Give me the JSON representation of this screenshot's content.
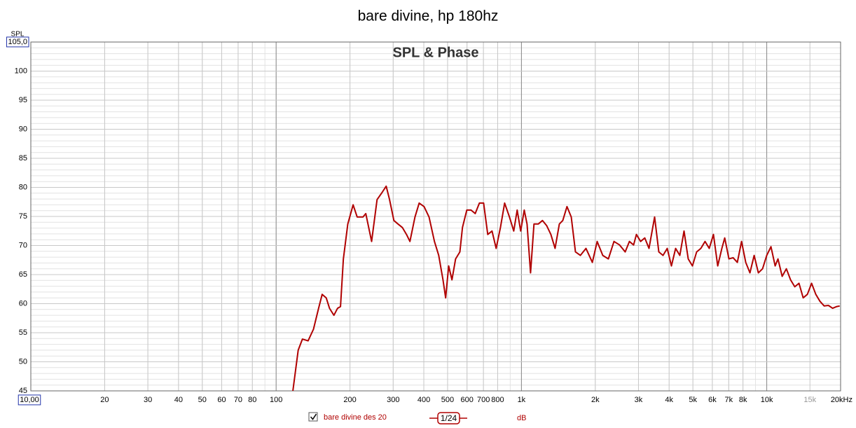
{
  "chart_data": {
    "type": "line",
    "title": "bare divine, hp 180hz",
    "subtitle": "SPL & Phase",
    "y_label": "SPL",
    "log_x": true,
    "grid": true,
    "xlim": [
      10,
      20000
    ],
    "ylim": [
      45,
      105
    ],
    "xticks": [
      {
        "value": 10,
        "label": "10,00"
      },
      20,
      30,
      40,
      50,
      60,
      70,
      80,
      100,
      200,
      300,
      400,
      500,
      600,
      700,
      800,
      {
        "value": 1000,
        "label": "1k"
      },
      {
        "value": 2000,
        "label": "2k"
      },
      {
        "value": 3000,
        "label": "3k"
      },
      {
        "value": 4000,
        "label": "4k"
      },
      {
        "value": 5000,
        "label": "5k"
      },
      {
        "value": 6000,
        "label": "6k"
      },
      {
        "value": 7000,
        "label": "7k"
      },
      {
        "value": 8000,
        "label": "8k"
      },
      {
        "value": 10000,
        "label": "10k"
      },
      {
        "value": 15000,
        "label": "15k"
      },
      {
        "value": 20000,
        "label": "20kHz"
      }
    ],
    "yticks": [
      45,
      50,
      55,
      60,
      65,
      70,
      75,
      80,
      85,
      90,
      95,
      100,
      {
        "value": 105,
        "label": "105,0"
      }
    ],
    "smoothing": "1/24",
    "unit": "dB",
    "x": [
      117,
      123,
      128,
      135,
      142,
      149,
      154,
      160,
      165,
      172,
      178,
      183,
      188,
      196,
      206,
      214,
      226,
      232,
      245,
      258,
      270,
      281,
      290,
      302,
      314,
      327,
      340,
      351,
      368,
      383,
      401,
      420,
      442,
      460,
      479,
      491,
      505,
      521,
      539,
      561,
      575,
      599,
      623,
      648,
      674,
      701,
      729,
      759,
      789,
      821,
      854,
      894,
      930,
      961,
      993,
      1027,
      1054,
      1089,
      1125,
      1171,
      1218,
      1268,
      1318,
      1371,
      1427,
      1474,
      1533,
      1596,
      1660,
      1738,
      1832,
      1945,
      2036,
      2145,
      2262,
      2384,
      2512,
      2649,
      2754,
      2865,
      2942,
      3060,
      3183,
      3311,
      3491,
      3631,
      3777,
      3929,
      4087,
      4252,
      4423,
      4601,
      4786,
      4979,
      5179,
      5387,
      5604,
      5830,
      6064,
      6310,
      6563,
      6741,
      7012,
      7295,
      7586,
      7892,
      8209,
      8540,
      8883,
      9241,
      9613,
      10000,
      10402,
      10822,
      11109,
      11558,
      12023,
      12507,
      13010,
      13534,
      14079,
      14646,
      15236,
      15849,
      16487,
      17151,
      17842,
      18561,
      19307,
      19825
    ],
    "series": [
      {
        "name": "bare divine des 20",
        "color": "#b00000",
        "values": [
          45,
          52,
          53.9,
          53.6,
          55.6,
          59.2,
          61.6,
          61,
          59.2,
          58,
          59.2,
          59.5,
          67.7,
          73.7,
          77,
          74.9,
          74.9,
          75.5,
          70.7,
          77.9,
          79.1,
          80.2,
          77.9,
          74.3,
          73.7,
          73.1,
          71.9,
          70.7,
          74.9,
          77.3,
          76.7,
          74.9,
          70.7,
          68.3,
          64.1,
          61,
          66.5,
          64.1,
          67.7,
          68.9,
          73.1,
          76.1,
          76.1,
          75.5,
          77.3,
          77.3,
          71.9,
          72.5,
          69.5,
          73.1,
          77.3,
          74.9,
          72.5,
          76.1,
          72.5,
          76.1,
          73.7,
          65.3,
          73.7,
          73.7,
          74.3,
          73.4,
          71.9,
          69.5,
          73.7,
          74.3,
          76.7,
          74.9,
          68.9,
          68.3,
          69.5,
          67.1,
          70.7,
          68.3,
          67.7,
          70.7,
          70.1,
          68.9,
          70.7,
          70.1,
          71.9,
          70.7,
          71.3,
          69.5,
          74.9,
          68.9,
          68.3,
          69.5,
          66.5,
          69.5,
          68.3,
          72.5,
          67.7,
          66.5,
          68.9,
          69.5,
          70.7,
          69.5,
          71.9,
          66.5,
          69.5,
          71.3,
          67.7,
          67.9,
          67.1,
          70.7,
          67.1,
          65.3,
          68.3,
          65.3,
          66,
          68.3,
          69.8,
          66.5,
          67.7,
          64.7,
          66,
          64.1,
          62.9,
          63.5,
          61,
          61.6,
          63.5,
          61.6,
          60.4,
          59.6,
          59.7,
          59.2,
          59.5,
          59.6
        ]
      }
    ]
  }
}
